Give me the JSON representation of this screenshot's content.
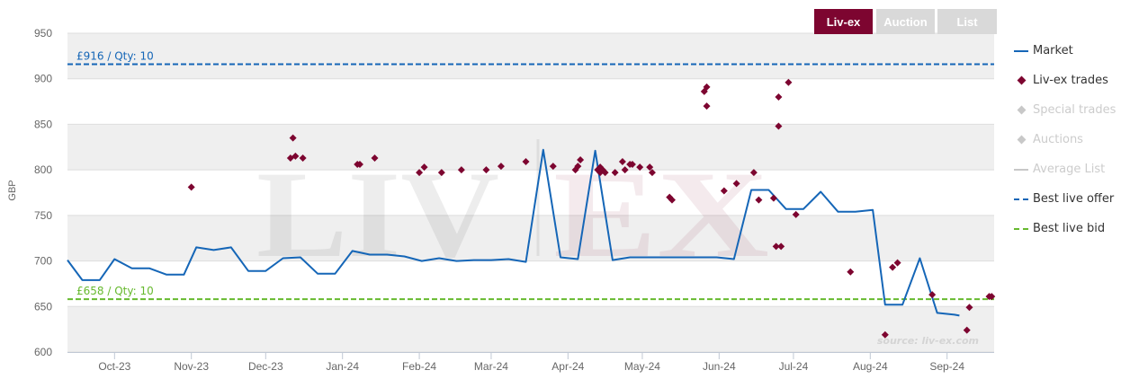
{
  "tabs": [
    {
      "label": "Liv-ex",
      "active": true
    },
    {
      "label": "Auction",
      "active": false
    },
    {
      "label": "List",
      "active": false
    }
  ],
  "watermark": {
    "left": "LIV",
    "right": "EX"
  },
  "legend": [
    {
      "label": "Market",
      "kind": "line",
      "color": "#1566b7",
      "active": true
    },
    {
      "label": "Liv-ex trades",
      "kind": "diamond",
      "color": "#7d0530",
      "active": true
    },
    {
      "label": "Special trades",
      "kind": "diamond",
      "color": "#c8c8c8",
      "active": false
    },
    {
      "label": "Auctions",
      "kind": "diamond",
      "color": "#c8c8c8",
      "active": false
    },
    {
      "label": "Average List",
      "kind": "line",
      "color": "#c8c8c8",
      "active": false
    },
    {
      "label": "Best live offer",
      "kind": "dash",
      "color": "#1566b7",
      "active": true
    },
    {
      "label": "Best live bid",
      "kind": "dash",
      "color": "#66b92e",
      "active": true
    }
  ],
  "chart_data": {
    "type": "line",
    "ylabel": "GBP",
    "source": "source: liv-ex.com",
    "ylim": [
      600,
      950
    ],
    "yticks": [
      600,
      650,
      700,
      750,
      800,
      850,
      900,
      950
    ],
    "xlim": [
      "2023-09-12",
      "2024-09-20"
    ],
    "xticks": [
      {
        "label": "Oct-23",
        "date": "2023-10-01"
      },
      {
        "label": "Nov-23",
        "date": "2023-11-01"
      },
      {
        "label": "Dec-23",
        "date": "2023-12-01"
      },
      {
        "label": "Jan-24",
        "date": "2024-01-01"
      },
      {
        "label": "Feb-24",
        "date": "2024-02-01"
      },
      {
        "label": "Mar-24",
        "date": "2024-03-01"
      },
      {
        "label": "Apr-24",
        "date": "2024-04-01"
      },
      {
        "label": "May-24",
        "date": "2024-05-01"
      },
      {
        "label": "Jun-24",
        "date": "2024-06-01"
      },
      {
        "label": "Jul-24",
        "date": "2024-07-01"
      },
      {
        "label": "Aug-24",
        "date": "2024-08-01"
      },
      {
        "label": "Sep-24",
        "date": "2024-09-01"
      }
    ],
    "series": [
      {
        "name": "Market",
        "color": "#1566b7",
        "points": [
          [
            "2023-09-12",
            701
          ],
          [
            "2023-09-18",
            679
          ],
          [
            "2023-09-25",
            679
          ],
          [
            "2023-10-01",
            702
          ],
          [
            "2023-10-08",
            692
          ],
          [
            "2023-10-15",
            692
          ],
          [
            "2023-10-22",
            685
          ],
          [
            "2023-10-29",
            685
          ],
          [
            "2023-11-03",
            715
          ],
          [
            "2023-11-10",
            712
          ],
          [
            "2023-11-17",
            715
          ],
          [
            "2023-11-24",
            689
          ],
          [
            "2023-12-01",
            689
          ],
          [
            "2023-12-08",
            703
          ],
          [
            "2023-12-15",
            704
          ],
          [
            "2023-12-22",
            686
          ],
          [
            "2023-12-29",
            686
          ],
          [
            "2024-01-05",
            711
          ],
          [
            "2024-01-12",
            707
          ],
          [
            "2024-01-19",
            707
          ],
          [
            "2024-01-26",
            705
          ],
          [
            "2024-02-02",
            700
          ],
          [
            "2024-02-09",
            703
          ],
          [
            "2024-02-16",
            700
          ],
          [
            "2024-02-23",
            701
          ],
          [
            "2024-03-01",
            701
          ],
          [
            "2024-03-08",
            702
          ],
          [
            "2024-03-15",
            699
          ],
          [
            "2024-03-22",
            822
          ],
          [
            "2024-03-29",
            704
          ],
          [
            "2024-04-05",
            702
          ],
          [
            "2024-04-12",
            821
          ],
          [
            "2024-04-19",
            701
          ],
          [
            "2024-04-26",
            704
          ],
          [
            "2024-05-03",
            704
          ],
          [
            "2024-05-10",
            704
          ],
          [
            "2024-05-17",
            704
          ],
          [
            "2024-05-24",
            704
          ],
          [
            "2024-05-31",
            704
          ],
          [
            "2024-06-07",
            702
          ],
          [
            "2024-06-14",
            778
          ],
          [
            "2024-06-21",
            778
          ],
          [
            "2024-06-28",
            757
          ],
          [
            "2024-07-05",
            757
          ],
          [
            "2024-07-12",
            776
          ],
          [
            "2024-07-19",
            754
          ],
          [
            "2024-07-26",
            754
          ],
          [
            "2024-08-02",
            756
          ],
          [
            "2024-08-07",
            652
          ],
          [
            "2024-08-14",
            652
          ],
          [
            "2024-08-21",
            703
          ],
          [
            "2024-08-28",
            643
          ],
          [
            "2024-09-04",
            641
          ],
          [
            "2024-09-06",
            640
          ]
        ]
      },
      {
        "name": "Liv-ex trades",
        "color": "#7d0530",
        "points": [
          [
            "2023-11-01",
            781
          ],
          [
            "2023-12-11",
            813
          ],
          [
            "2023-12-12",
            835
          ],
          [
            "2023-12-13",
            815
          ],
          [
            "2023-12-16",
            813
          ],
          [
            "2024-01-07",
            806
          ],
          [
            "2024-01-08",
            806
          ],
          [
            "2024-01-14",
            813
          ],
          [
            "2024-02-01",
            797
          ],
          [
            "2024-02-03",
            803
          ],
          [
            "2024-02-10",
            797
          ],
          [
            "2024-02-18",
            800
          ],
          [
            "2024-02-28",
            800
          ],
          [
            "2024-03-05",
            804
          ],
          [
            "2024-03-15",
            809
          ],
          [
            "2024-03-26",
            804
          ],
          [
            "2024-04-04",
            800
          ],
          [
            "2024-04-05",
            804
          ],
          [
            "2024-04-06",
            811
          ],
          [
            "2024-04-13",
            800
          ],
          [
            "2024-04-14",
            803
          ],
          [
            "2024-04-14",
            797
          ],
          [
            "2024-04-15",
            800
          ],
          [
            "2024-04-16",
            797
          ],
          [
            "2024-04-20",
            797
          ],
          [
            "2024-04-23",
            809
          ],
          [
            "2024-04-24",
            800
          ],
          [
            "2024-04-26",
            806
          ],
          [
            "2024-04-27",
            806
          ],
          [
            "2024-04-30",
            803
          ],
          [
            "2024-05-04",
            803
          ],
          [
            "2024-05-05",
            797
          ],
          [
            "2024-05-12",
            770
          ],
          [
            "2024-05-13",
            767
          ],
          [
            "2024-05-26",
            886
          ],
          [
            "2024-05-27",
            891
          ],
          [
            "2024-05-27",
            870
          ],
          [
            "2024-06-03",
            777
          ],
          [
            "2024-06-08",
            785
          ],
          [
            "2024-06-15",
            797
          ],
          [
            "2024-06-17",
            767
          ],
          [
            "2024-06-23",
            769
          ],
          [
            "2024-06-24",
            716
          ],
          [
            "2024-06-25",
            848
          ],
          [
            "2024-06-25",
            880
          ],
          [
            "2024-06-26",
            716
          ],
          [
            "2024-06-29",
            896
          ],
          [
            "2024-07-02",
            751
          ],
          [
            "2024-07-24",
            688
          ],
          [
            "2024-08-07",
            619
          ],
          [
            "2024-08-10",
            693
          ],
          [
            "2024-08-12",
            698
          ],
          [
            "2024-08-26",
            663
          ],
          [
            "2024-09-09",
            624
          ],
          [
            "2024-09-10",
            649
          ],
          [
            "2024-09-18",
            661
          ],
          [
            "2024-09-19",
            661
          ]
        ]
      }
    ],
    "best_live_offer": {
      "value": 916,
      "label": "£916 / Qty: 10",
      "color": "#1566b7"
    },
    "best_live_bid": {
      "value": 658,
      "label": "£658 / Qty: 10",
      "color": "#66b92e"
    }
  }
}
